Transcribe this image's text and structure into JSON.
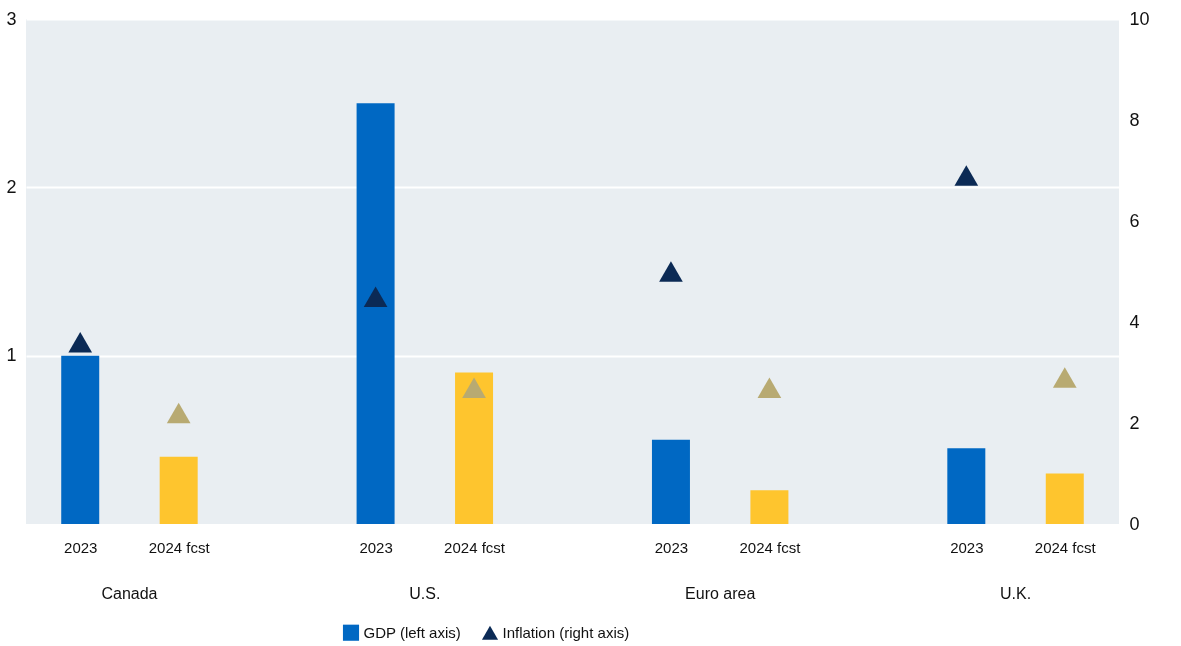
{
  "chart_data": {
    "type": "bar",
    "categories": [
      "2023",
      "2024 fcst",
      null,
      "2023",
      "2024 fcst",
      null,
      "2023",
      "2024 fcst",
      null,
      "2023",
      "2024 fcst"
    ],
    "series": [
      {
        "name": "GDP (left axis)",
        "color": "#0068c3",
        "colors": [
          "#0068c3",
          "#fec52e",
          null,
          "#0068c3",
          "#fec52e",
          null,
          "#0068c3",
          "#fec52e",
          null,
          "#0068c3",
          "#fec52e"
        ],
        "values": [
          1.0,
          0.4,
          null,
          2.5,
          0.9,
          null,
          0.5,
          0.2,
          null,
          0.45,
          0.3
        ]
      },
      {
        "name": "Inflation (right axis)",
        "type": "scatter",
        "axis": "y2",
        "marker": "triangle",
        "color": "#0b2a55",
        "colors": [
          "#0b2a55",
          "#b8aa72",
          null,
          "#0b2a55",
          "#b8aa72",
          null,
          "#0b2a55",
          "#b8aa72",
          null,
          "#0b2a55",
          "#b8aa72"
        ],
        "values": [
          3.6,
          2.2,
          null,
          4.5,
          2.7,
          null,
          5.0,
          2.7,
          null,
          6.9,
          2.9
        ]
      }
    ],
    "ylim": [
      0,
      3
    ],
    "yticks": [
      1,
      2,
      3
    ],
    "y2lim": [
      0,
      10
    ],
    "y2ticks": [
      0,
      2,
      4,
      6,
      8,
      10
    ],
    "grid": "y",
    "legend": "bottom",
    "annotations": [
      "Canada",
      "U.S.",
      "Euro area",
      "U.K."
    ]
  }
}
